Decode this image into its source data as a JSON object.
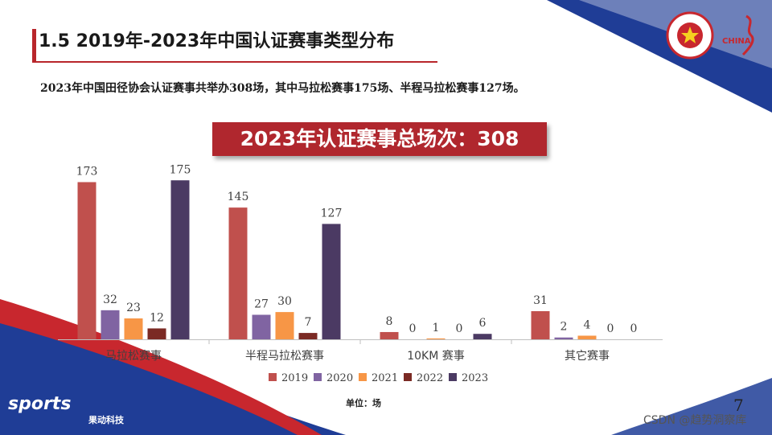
{
  "title": "1.5 2019年-2023年中国认证赛事类型分布",
  "subtitle": "2023年中国田径协会认证赛事共举办308场，其中马拉松赛事175场、半程马拉松赛事127场。",
  "banner": "2023年认证赛事总场次：308",
  "unit_label": "单位：场",
  "page_number": "7",
  "watermark": "CSDN @趋势洞察库",
  "logo": {
    "text": "sports",
    "sub": "果动科技"
  },
  "emblem_text": "CHINA",
  "colors": {
    "accent": "#b8262b",
    "navy": "#1f3d96"
  },
  "chart_data": {
    "type": "bar",
    "categories": [
      "马拉松赛事",
      "半程马拉松赛事",
      "10KM 赛事",
      "其它赛事"
    ],
    "series": [
      {
        "name": "2019",
        "color": "#c0504d",
        "values": [
          173,
          145,
          8,
          31
        ]
      },
      {
        "name": "2020",
        "color": "#8064a2",
        "values": [
          32,
          27,
          0,
          2
        ]
      },
      {
        "name": "2021",
        "color": "#f79646",
        "values": [
          23,
          30,
          1,
          4
        ]
      },
      {
        "name": "2022",
        "color": "#7b2a24",
        "values": [
          12,
          7,
          0,
          0
        ]
      },
      {
        "name": "2023",
        "color": "#4b3a63",
        "values": [
          175,
          127,
          6,
          0
        ]
      }
    ],
    "ylim": [
      0,
      200
    ],
    "legend": "bottom",
    "grid": false
  }
}
